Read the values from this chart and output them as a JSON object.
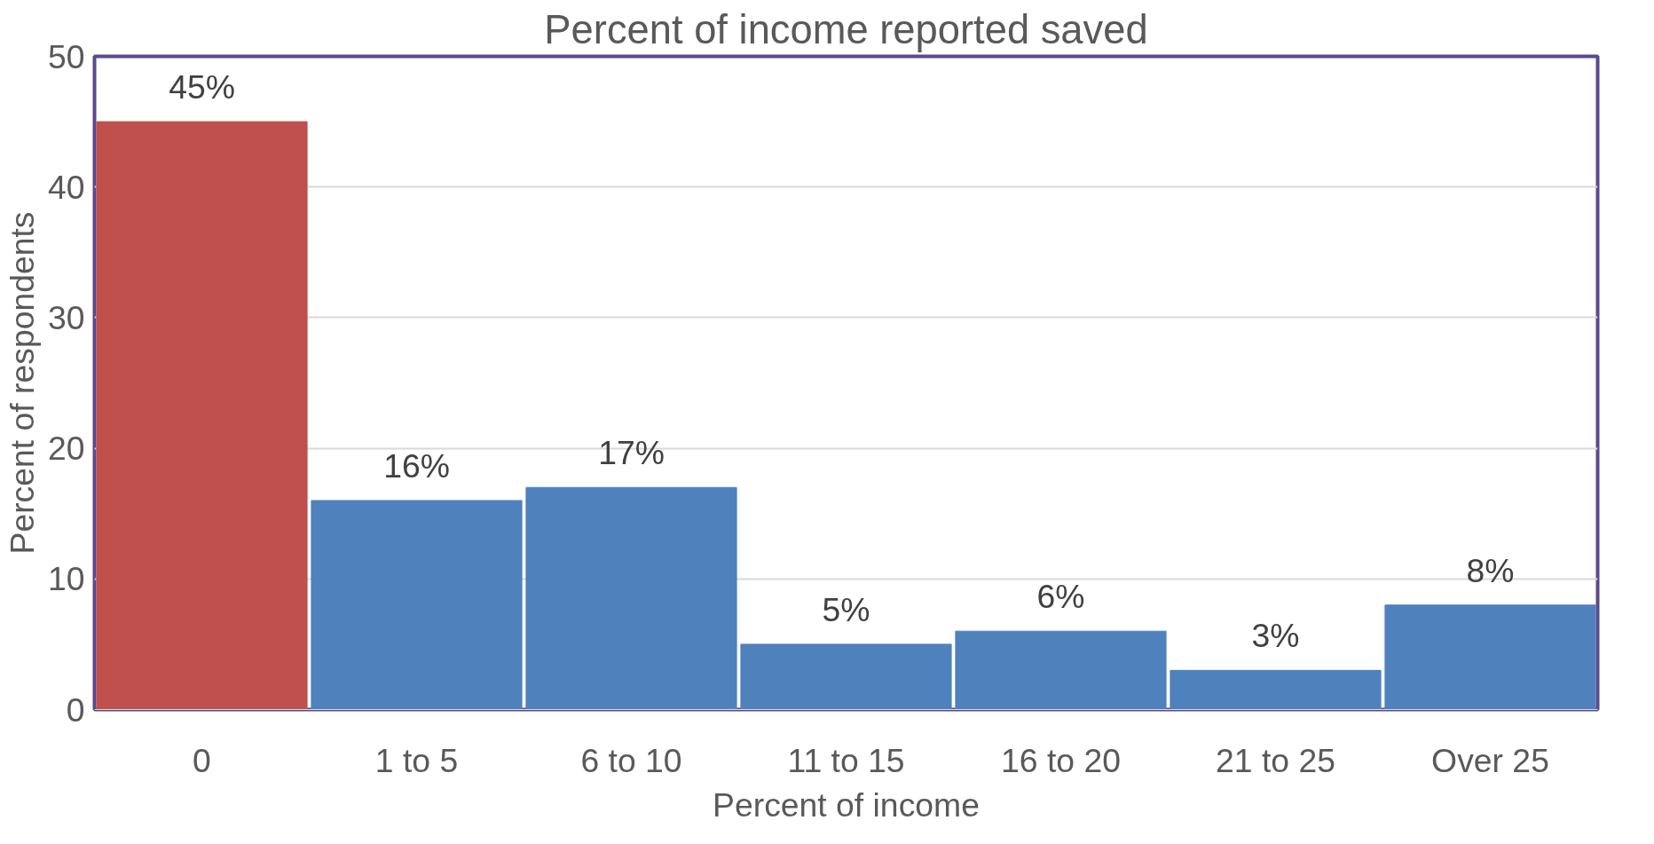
{
  "chart_data": {
    "type": "bar",
    "title": "Percent of income reported saved",
    "xlabel": "Percent of income",
    "ylabel": "Percent of respondents",
    "categories": [
      "0",
      "1 to 5",
      "6 to 10",
      "11 to 15",
      "16 to 20",
      "21 to 25",
      "Over 25"
    ],
    "values": [
      45,
      16,
      17,
      5,
      6,
      3,
      8
    ],
    "colors": [
      "#c0504d",
      "#4f81bd",
      "#4f81bd",
      "#4f81bd",
      "#4f81bd",
      "#4f81bd",
      "#4f81bd"
    ],
    "value_labels": [
      "45%",
      "16%",
      "17%",
      "5%",
      "6%",
      "3%",
      "8%"
    ],
    "ylim": [
      0,
      50
    ],
    "yticks": [
      0,
      10,
      20,
      30,
      40,
      50
    ],
    "grid": "y"
  }
}
